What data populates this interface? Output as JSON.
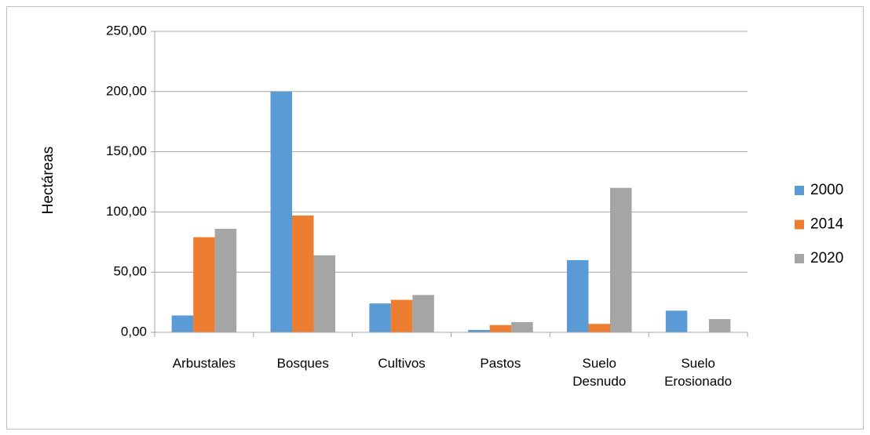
{
  "chart_data": {
    "type": "bar",
    "y_label": "Hectáreas",
    "categories": [
      "Arbustales",
      "Bosques",
      "Cultivos",
      "Pastos",
      "Suelo Desnudo",
      "Suelo Erosionado"
    ],
    "series": [
      {
        "name": "2000",
        "color": "#5b9bd5",
        "values": [
          14,
          200,
          24,
          2,
          60,
          18
        ]
      },
      {
        "name": "2014",
        "color": "#ed7d31",
        "values": [
          79,
          97,
          27,
          6,
          7,
          0
        ]
      },
      {
        "name": "2020",
        "color": "#a5a5a5",
        "values": [
          86,
          64,
          31,
          8.5,
          120,
          11
        ]
      }
    ],
    "ylim": [
      0,
      250
    ],
    "yticks": [
      {
        "value": 0,
        "label": "0,00"
      },
      {
        "value": 50,
        "label": "50,00"
      },
      {
        "value": 100,
        "label": "100,00"
      },
      {
        "value": 150,
        "label": "150,00"
      },
      {
        "value": 200,
        "label": "200,00"
      },
      {
        "value": 250,
        "label": "250,00"
      }
    ],
    "grid": true,
    "legend": "right"
  }
}
